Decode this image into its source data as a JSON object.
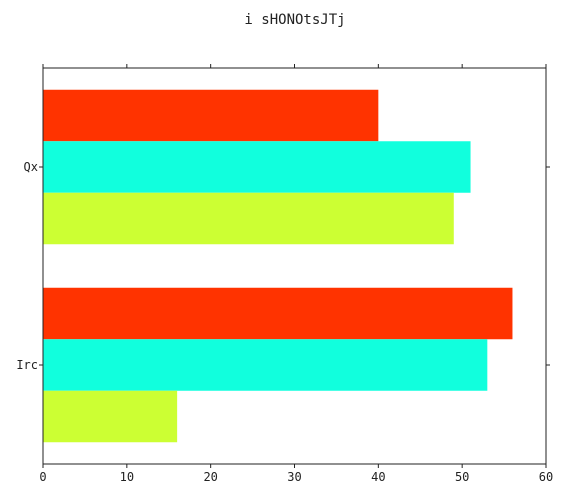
{
  "chart_data": {
    "type": "bar",
    "orientation": "horizontal",
    "title": "i sHONOtsJTj",
    "xlabel": "",
    "ylabel": "",
    "categories": [
      "Qx",
      "Irc"
    ],
    "series": [
      {
        "values": [
          40,
          56
        ],
        "color": "#ff3300"
      },
      {
        "values": [
          51,
          53
        ],
        "color": "#11ffdd"
      },
      {
        "values": [
          49,
          16
        ],
        "color": "#ccff33"
      }
    ],
    "xlim": [
      0,
      60
    ],
    "xticks": [
      0,
      10,
      20,
      30,
      40,
      50,
      60
    ],
    "grid": false,
    "legend": "none"
  }
}
